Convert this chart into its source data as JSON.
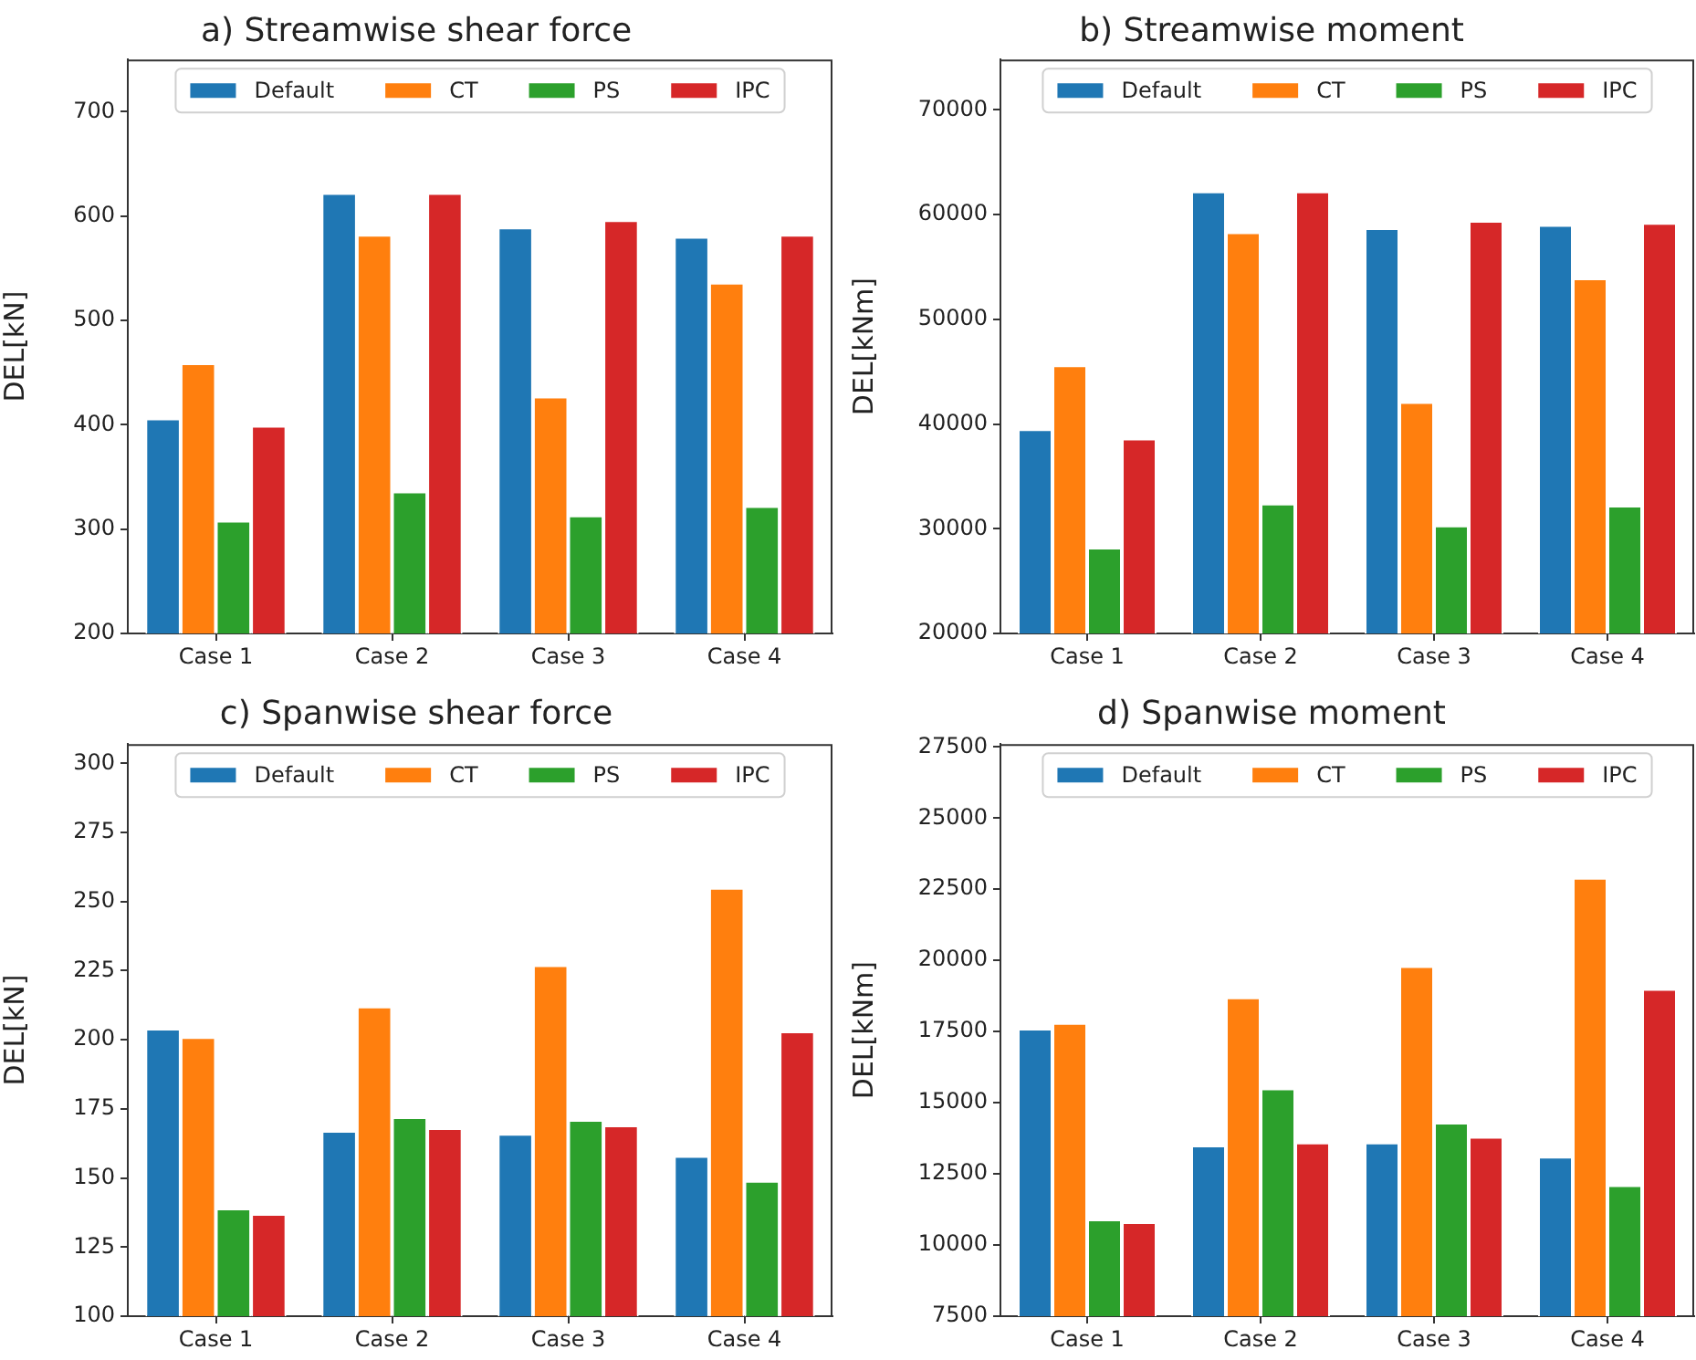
{
  "chart_data": [
    {
      "type": "bar",
      "title": "a) Streamwise shear force",
      "ylabel": "DEL[kN]",
      "categories": [
        "Case 1",
        "Case 2",
        "Case 3",
        "Case 4"
      ],
      "series": [
        {
          "name": "Default",
          "color": "#1f77b4",
          "values": [
            406,
            622,
            589,
            580
          ]
        },
        {
          "name": "CT",
          "color": "#ff7f0e",
          "values": [
            459,
            582,
            427,
            536
          ]
        },
        {
          "name": "PS",
          "color": "#2ca02c",
          "values": [
            308,
            336,
            313,
            322
          ]
        },
        {
          "name": "IPC",
          "color": "#d62728",
          "values": [
            399,
            622,
            596,
            582
          ]
        }
      ],
      "ylim": [
        200,
        750
      ],
      "yticks": [
        200,
        300,
        400,
        500,
        600,
        700
      ],
      "legend": "top",
      "grid": false
    },
    {
      "type": "bar",
      "title": "b) Streamwise moment",
      "ylabel": "DEL[kNm]",
      "categories": [
        "Case 1",
        "Case 2",
        "Case 3",
        "Case 4"
      ],
      "series": [
        {
          "name": "Default",
          "color": "#1f77b4",
          "values": [
            39500,
            62200,
            58700,
            59000
          ]
        },
        {
          "name": "CT",
          "color": "#ff7f0e",
          "values": [
            45600,
            58300,
            42100,
            53900
          ]
        },
        {
          "name": "PS",
          "color": "#2ca02c",
          "values": [
            28200,
            32400,
            30300,
            32200
          ]
        },
        {
          "name": "IPC",
          "color": "#d62728",
          "values": [
            38600,
            62200,
            59400,
            59200
          ]
        }
      ],
      "ylim": [
        20000,
        74800
      ],
      "yticks": [
        20000,
        30000,
        40000,
        50000,
        60000,
        70000
      ],
      "legend": "top",
      "grid": false
    },
    {
      "type": "bar",
      "title": "c) Spanwise shear force",
      "ylabel": "DEL[kN]",
      "categories": [
        "Case 1",
        "Case 2",
        "Case 3",
        "Case 4"
      ],
      "series": [
        {
          "name": "Default",
          "color": "#1f77b4",
          "values": [
            204,
            167,
            166,
            158
          ]
        },
        {
          "name": "CT",
          "color": "#ff7f0e",
          "values": [
            201,
            212,
            227,
            255
          ]
        },
        {
          "name": "PS",
          "color": "#2ca02c",
          "values": [
            139,
            172,
            171,
            149
          ]
        },
        {
          "name": "IPC",
          "color": "#d62728",
          "values": [
            137,
            168,
            169,
            203
          ]
        }
      ],
      "ylim": [
        100,
        307
      ],
      "yticks": [
        100,
        125,
        150,
        175,
        200,
        225,
        250,
        275,
        300
      ],
      "legend": "top",
      "grid": false
    },
    {
      "type": "bar",
      "title": "d) Spanwise moment",
      "ylabel": "DEL[kNm]",
      "categories": [
        "Case 1",
        "Case 2",
        "Case 3",
        "Case 4"
      ],
      "series": [
        {
          "name": "Default",
          "color": "#1f77b4",
          "values": [
            17600,
            13500,
            13600,
            13100
          ]
        },
        {
          "name": "CT",
          "color": "#ff7f0e",
          "values": [
            17800,
            18700,
            19800,
            22900
          ]
        },
        {
          "name": "PS",
          "color": "#2ca02c",
          "values": [
            10900,
            15500,
            14300,
            12100
          ]
        },
        {
          "name": "IPC",
          "color": "#d62728",
          "values": [
            10800,
            13600,
            13800,
            19000
          ]
        }
      ],
      "ylim": [
        7500,
        27600
      ],
      "yticks": [
        7500,
        10000,
        12500,
        15000,
        17500,
        20000,
        22500,
        25000,
        27500
      ],
      "legend": "top",
      "grid": false
    }
  ]
}
